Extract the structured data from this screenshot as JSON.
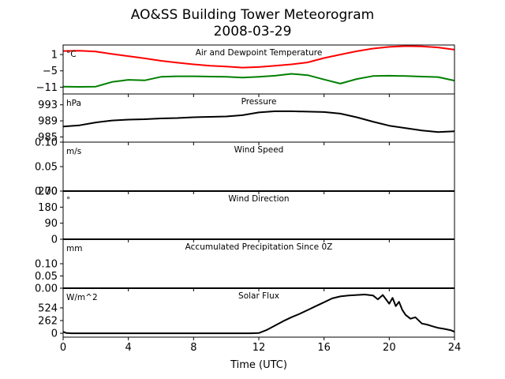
{
  "figure": {
    "title": "AO&SS Building Tower Meteorogram",
    "subtitle": "2008-03-29",
    "xlabel": "Time (UTC)"
  },
  "chart_data": [
    {
      "id": "temperature",
      "type": "line",
      "title": "Air and Dewpoint Temperature",
      "unit": "°C",
      "xlim": [
        0,
        24
      ],
      "ylim": [
        -13.5,
        4.5
      ],
      "yticks": [
        1,
        -5,
        -11
      ],
      "ytick_labels": [
        "1",
        "−5",
        "−11"
      ],
      "x": [
        0,
        1,
        2,
        3,
        4,
        5,
        6,
        7,
        8,
        9,
        10,
        11,
        12,
        13,
        14,
        15,
        16,
        17,
        18,
        19,
        20,
        21,
        22,
        23,
        24
      ],
      "series": [
        {
          "color": "#ff0000",
          "values": [
            2.3,
            2.4,
            2.1,
            1.2,
            0.4,
            -0.4,
            -1.3,
            -2.0,
            -2.6,
            -3.1,
            -3.4,
            -3.8,
            -3.6,
            -3.1,
            -2.6,
            -1.9,
            -0.3,
            1.0,
            2.2,
            3.2,
            3.8,
            4.1,
            4.0,
            3.6,
            2.8
          ]
        },
        {
          "color": "#008000",
          "values": [
            -10.8,
            -10.9,
            -10.8,
            -9.1,
            -8.3,
            -8.5,
            -7.2,
            -7.0,
            -7.0,
            -7.1,
            -7.2,
            -7.5,
            -7.2,
            -6.8,
            -6.1,
            -6.6,
            -8.2,
            -9.7,
            -8.0,
            -6.9,
            -6.8,
            -6.9,
            -7.1,
            -7.3,
            -8.6
          ]
        }
      ]
    },
    {
      "id": "pressure",
      "type": "line",
      "title": "Pressure",
      "unit": "hPa",
      "xlim": [
        0,
        24
      ],
      "ylim": [
        983.7,
        995.7
      ],
      "yticks": [
        993,
        989,
        985
      ],
      "ytick_labels": [
        "993",
        "989",
        "985"
      ],
      "x": [
        0,
        1,
        2,
        3,
        4,
        5,
        6,
        7,
        8,
        9,
        10,
        11,
        12,
        13,
        14,
        15,
        16,
        17,
        18,
        19,
        20,
        21,
        22,
        23,
        24
      ],
      "series": [
        {
          "color": "#000000",
          "values": [
            987.6,
            987.9,
            988.6,
            989.1,
            989.3,
            989.4,
            989.6,
            989.7,
            989.9,
            990.0,
            990.1,
            990.4,
            991.1,
            991.4,
            991.4,
            991.3,
            991.2,
            990.8,
            989.9,
            988.8,
            987.8,
            987.2,
            986.6,
            986.2,
            986.4
          ]
        }
      ]
    },
    {
      "id": "wind-speed",
      "type": "line",
      "title": "Wind Speed",
      "unit": "m/s",
      "xlim": [
        0,
        24
      ],
      "ylim": [
        0,
        0.1
      ],
      "yticks": [
        0.1,
        0.05,
        0.0
      ],
      "ytick_labels": [
        "0.10",
        "0.05",
        "0.00"
      ],
      "x": [
        0,
        24
      ],
      "series": [
        {
          "color": "#000000",
          "values": [
            0,
            0
          ]
        }
      ]
    },
    {
      "id": "wind-direction",
      "type": "line",
      "title": "Wind Direction",
      "unit": "°",
      "xlim": [
        0,
        24
      ],
      "ylim": [
        0,
        270
      ],
      "yticks": [
        270,
        180,
        90,
        0
      ],
      "ytick_labels": [
        "270",
        "180",
        "90",
        "0"
      ],
      "x": [
        0,
        24
      ],
      "series": [
        {
          "color": "#000000",
          "values": [
            0,
            0
          ]
        }
      ]
    },
    {
      "id": "precipitation",
      "type": "line",
      "title": "Accumulated Precipitation Since 0Z",
      "unit": "mm",
      "xlim": [
        0,
        24
      ],
      "ylim": [
        0,
        0.2
      ],
      "yticks": [
        0.1,
        0.05,
        0.0
      ],
      "ytick_labels": [
        "0.10",
        "0.05",
        "0.00"
      ],
      "x": [
        0,
        24
      ],
      "series": [
        {
          "color": "#000000",
          "values": [
            0,
            0
          ]
        }
      ]
    },
    {
      "id": "solar-flux",
      "type": "line",
      "title": "Solar Flux",
      "unit": "W/m^2",
      "xlim": [
        0,
        24
      ],
      "ylim": [
        -80,
        930
      ],
      "yticks": [
        524,
        262,
        0
      ],
      "ytick_labels": [
        "524",
        "262",
        "0"
      ],
      "xticks": [
        0,
        4,
        8,
        12,
        16,
        20,
        24
      ],
      "x": [
        0,
        0.2,
        0.5,
        1,
        2,
        4,
        6,
        8,
        10,
        11.5,
        12,
        12.5,
        13,
        13.5,
        14,
        14.5,
        15,
        15.5,
        16,
        16.5,
        17,
        17.5,
        18,
        18.5,
        19,
        19.3,
        19.6,
        20,
        20.2,
        20.4,
        20.6,
        20.8,
        21,
        21.3,
        21.6,
        22,
        22.3,
        22.6,
        23,
        23.4,
        23.8,
        24
      ],
      "series": [
        {
          "color": "#000000",
          "values": [
            30,
            5,
            0,
            0,
            0,
            0,
            0,
            0,
            0,
            0,
            5,
            70,
            160,
            250,
            330,
            400,
            480,
            560,
            640,
            720,
            760,
            780,
            790,
            800,
            780,
            700,
            790,
            610,
            730,
            560,
            650,
            480,
            380,
            300,
            330,
            200,
            180,
            150,
            110,
            90,
            60,
            30
          ]
        }
      ]
    }
  ]
}
